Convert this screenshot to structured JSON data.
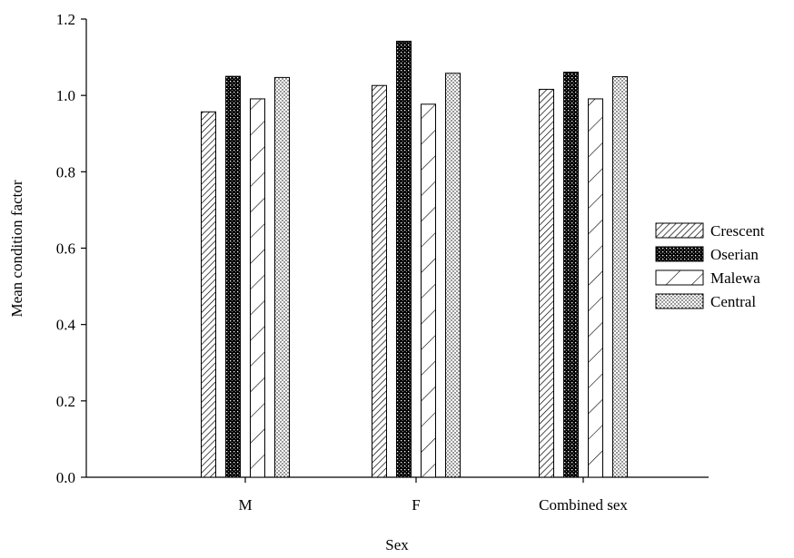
{
  "chart_data": {
    "type": "bar",
    "title": "",
    "xlabel": "Sex",
    "ylabel": "Mean condition factor",
    "categories": [
      "M",
      "F",
      "Combined sex"
    ],
    "ylim": [
      0.0,
      1.2
    ],
    "yticks": [
      "0.0",
      "0.2",
      "0.4",
      "0.6",
      "0.8",
      "1.0",
      "1.2"
    ],
    "grid": false,
    "legend_position": "right",
    "series": [
      {
        "name": "Crescent",
        "pattern": "dense-diagonal-hatch",
        "values": [
          0.957,
          1.026,
          1.016
        ]
      },
      {
        "name": "Oserian",
        "pattern": "black-crosshatch",
        "values": [
          1.05,
          1.142,
          1.061
        ]
      },
      {
        "name": "Malewa",
        "pattern": "wide-diagonal-hatch",
        "values": [
          0.991,
          0.977,
          0.991
        ]
      },
      {
        "name": "Central",
        "pattern": "fine-dots",
        "values": [
          1.047,
          1.058,
          1.049
        ]
      }
    ]
  }
}
